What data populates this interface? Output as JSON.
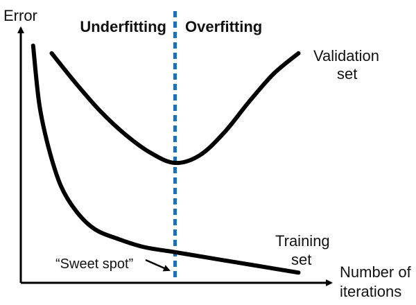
{
  "chart_data": {
    "type": "line",
    "title": "",
    "ylabel": "Error",
    "xlabel_line1": "Number of",
    "xlabel_line2": "iterations",
    "regions": {
      "left": "Underfitting",
      "right": "Overfitting"
    },
    "divider_color": "#1f6fb5",
    "curve_color": "#000000",
    "series": [
      {
        "name_line1": "Validation",
        "name_line2": "set",
        "points": [
          [
            10,
            0.9
          ],
          [
            18,
            0.78
          ],
          [
            26,
            0.67
          ],
          [
            34,
            0.58
          ],
          [
            42,
            0.51
          ],
          [
            50,
            0.47
          ],
          [
            58,
            0.5
          ],
          [
            66,
            0.59
          ],
          [
            74,
            0.71
          ],
          [
            82,
            0.82
          ],
          [
            90,
            0.9
          ]
        ]
      },
      {
        "name_line1": "Training",
        "name_line2": "set",
        "points": [
          [
            4,
            0.93
          ],
          [
            6,
            0.7
          ],
          [
            9,
            0.53
          ],
          [
            13,
            0.38
          ],
          [
            18,
            0.28
          ],
          [
            24,
            0.21
          ],
          [
            32,
            0.17
          ],
          [
            40,
            0.14
          ],
          [
            50,
            0.12
          ],
          [
            60,
            0.1
          ],
          [
            70,
            0.08
          ],
          [
            80,
            0.06
          ],
          [
            90,
            0.04
          ]
        ]
      }
    ],
    "annotation": {
      "text": "“Sweet spot”",
      "at_x": 50
    }
  }
}
